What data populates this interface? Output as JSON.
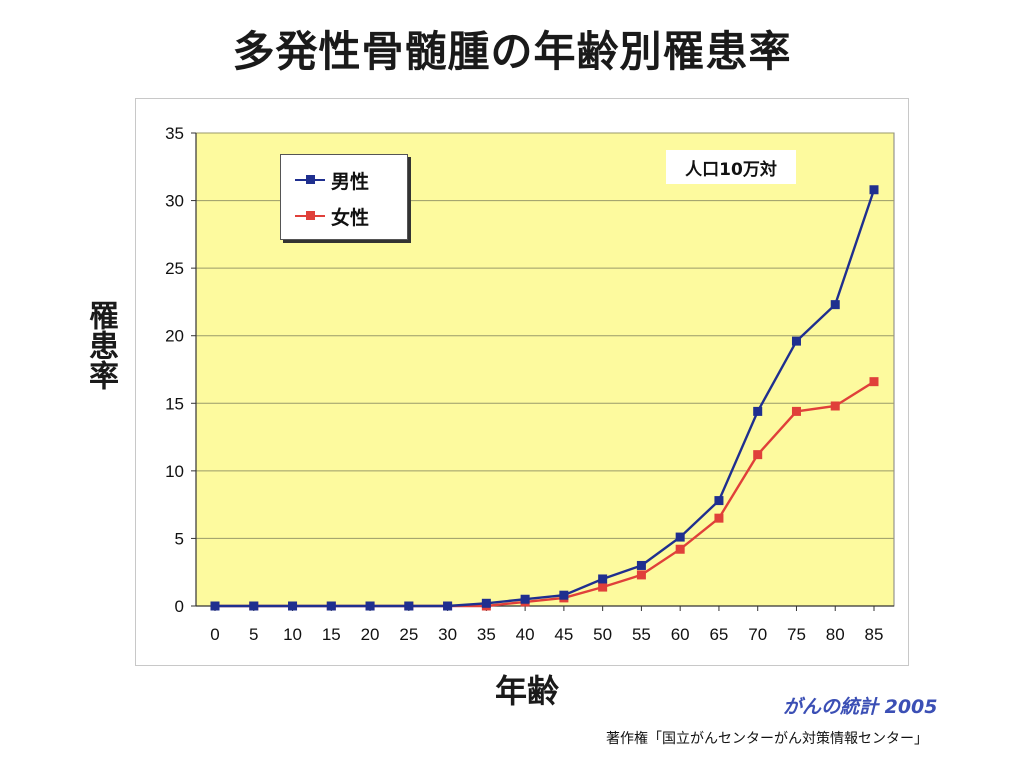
{
  "title": "多発性骨髄腫の年齢別罹患率",
  "source_label": "がんの統計 2005",
  "copyright": "著作権「国立がんセンターがん対策情報センター」",
  "unit_note": "人口10万対",
  "colors": {
    "plot_background": "#fdfa9e",
    "male": "#1f2f8f",
    "female": "#e0403a",
    "grid": "#9a9a6a",
    "source_text": "#3b4fb5"
  },
  "chart_data": {
    "type": "line",
    "xlabel": "年齢",
    "ylabel": "罹患率",
    "categories": [
      "0",
      "5",
      "10",
      "15",
      "20",
      "25",
      "30",
      "35",
      "40",
      "45",
      "50",
      "55",
      "60",
      "65",
      "70",
      "75",
      "80",
      "85"
    ],
    "ylim": [
      0,
      35
    ],
    "yticks": [
      0,
      5,
      10,
      15,
      20,
      25,
      30,
      35
    ],
    "grid": true,
    "legend_position": "top-left",
    "series": [
      {
        "name": "男性",
        "color": "#1f2f8f",
        "values": [
          0.0,
          0.0,
          0.0,
          0.0,
          0.0,
          0.0,
          0.0,
          0.2,
          0.5,
          0.8,
          2.0,
          3.0,
          5.1,
          7.8,
          14.4,
          19.6,
          22.3,
          30.8
        ]
      },
      {
        "name": "女性",
        "color": "#e0403a",
        "values": [
          0.0,
          0.0,
          0.0,
          0.0,
          0.0,
          0.0,
          0.0,
          0.0,
          0.3,
          0.6,
          1.4,
          2.3,
          4.2,
          6.5,
          11.2,
          14.4,
          14.8,
          16.6
        ]
      }
    ]
  }
}
